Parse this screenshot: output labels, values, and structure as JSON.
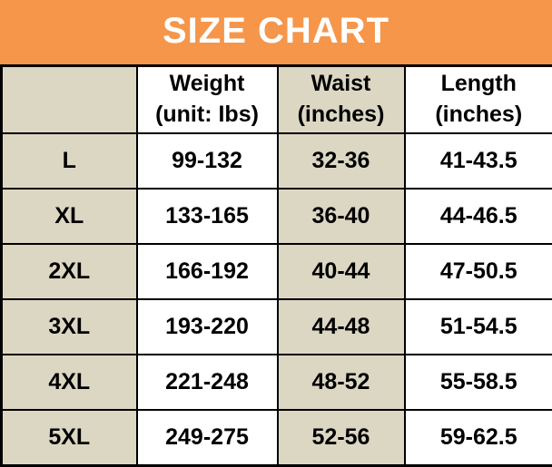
{
  "chart_data": {
    "type": "table",
    "title": "SIZE CHART",
    "columns": [
      {
        "label": "",
        "sub": ""
      },
      {
        "label": "Weight",
        "sub": "(unit: Ibs)"
      },
      {
        "label": "Waist",
        "sub": "(inches)"
      },
      {
        "label": "Length",
        "sub": "(inches)"
      }
    ],
    "rows": [
      {
        "size": "L",
        "weight": "99-132",
        "waist": "32-36",
        "length": "41-43.5"
      },
      {
        "size": "XL",
        "weight": "133-165",
        "waist": "36-40",
        "length": "44-46.5"
      },
      {
        "size": "2XL",
        "weight": "166-192",
        "waist": "40-44",
        "length": "47-50.5"
      },
      {
        "size": "3XL",
        "weight": "193-220",
        "waist": "44-48",
        "length": "51-54.5"
      },
      {
        "size": "4XL",
        "weight": "221-248",
        "waist": "48-52",
        "length": "55-58.5"
      },
      {
        "size": "5XL",
        "weight": "249-275",
        "waist": "52-56",
        "length": "59-62.5"
      }
    ],
    "layout": {
      "grid": "on",
      "column_fills": [
        "beige",
        "white",
        "beige",
        "white"
      ],
      "header_position": "top banner above table"
    }
  },
  "colors": {
    "banner_bg": "#F5964B",
    "banner_text": "#FFFFFF",
    "cell_beige": "#DCD7C3",
    "cell_white": "#FFFFFF",
    "border": "#000000",
    "text": "#000000"
  }
}
